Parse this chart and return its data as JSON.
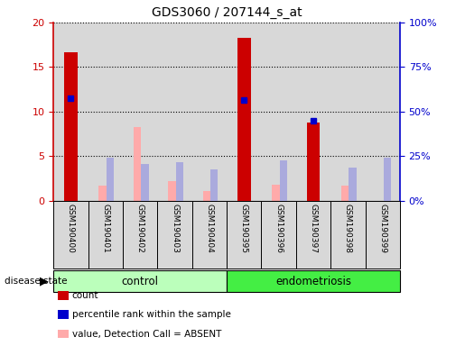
{
  "title": "GDS3060 / 207144_s_at",
  "samples": [
    "GSM190400",
    "GSM190401",
    "GSM190402",
    "GSM190403",
    "GSM190404",
    "GSM190395",
    "GSM190396",
    "GSM190397",
    "GSM190398",
    "GSM190399"
  ],
  "count_values": [
    16.7,
    0,
    0,
    0,
    0,
    18.3,
    0,
    8.8,
    0,
    0
  ],
  "percentile_values": [
    57.5,
    0,
    0,
    0,
    0,
    56.5,
    0,
    45.0,
    0,
    0
  ],
  "absent_value_bars": [
    0,
    1.7,
    8.3,
    2.2,
    1.1,
    0,
    1.8,
    0,
    1.7,
    0
  ],
  "absent_rank_bars": [
    0,
    24,
    20.5,
    21.5,
    17.5,
    0,
    22.5,
    0,
    18.5,
    24
  ],
  "ylim_left": [
    0,
    20
  ],
  "ylim_right": [
    0,
    100
  ],
  "yticks_left": [
    0,
    5,
    10,
    15,
    20
  ],
  "yticks_right": [
    0,
    25,
    50,
    75,
    100
  ],
  "yticklabels_right": [
    "0%",
    "25%",
    "50%",
    "75%",
    "100%"
  ],
  "left_axis_color": "#cc0000",
  "right_axis_color": "#0000cc",
  "count_color": "#cc0000",
  "percentile_color": "#0000cc",
  "absent_value_color": "#ffaaaa",
  "absent_rank_color": "#aaaadd",
  "control_light_color": "#bbffbb",
  "endometriosis_color": "#44ee44",
  "bg_color": "#d8d8d8",
  "dotted_grid_color": "black"
}
